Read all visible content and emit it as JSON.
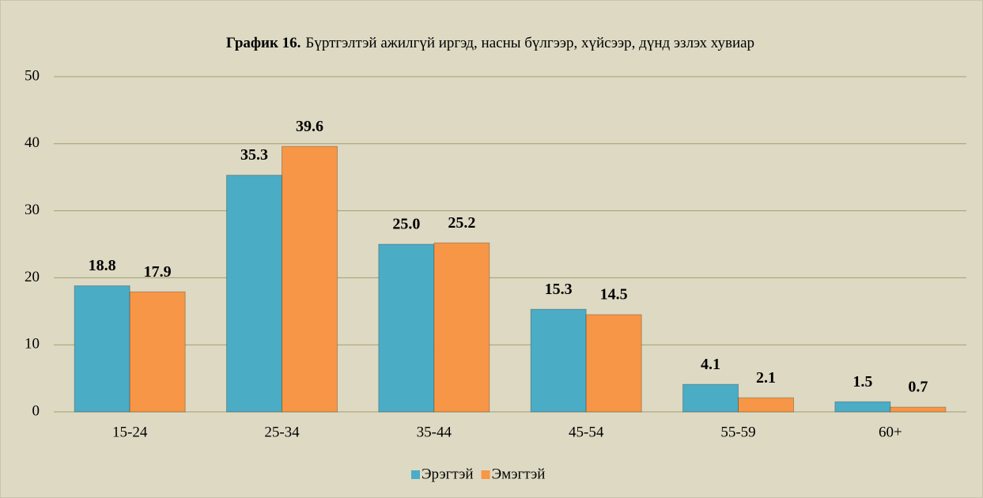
{
  "chart_data": {
    "type": "bar",
    "title_number": "График 16.",
    "title": "Бүртгэлтэй ажилгүй иргэд, насны бүлгээр, хүйсээр, дүнд эзлэх хувиар",
    "categories": [
      "15-24",
      "25-34",
      "35-44",
      "45-54",
      "55-59",
      "60+"
    ],
    "series": [
      {
        "name": "Эрэгтэй",
        "color": "#4bacc6",
        "values": [
          18.8,
          35.3,
          25.0,
          15.3,
          4.1,
          1.5
        ],
        "value_labels": [
          "18.8",
          "35.3",
          "25.0",
          "15.3",
          "4.1",
          "1.5"
        ]
      },
      {
        "name": "Эмэгтэй",
        "color": "#f79646",
        "values": [
          17.9,
          39.6,
          25.2,
          14.5,
          2.1,
          0.7
        ],
        "value_labels": [
          "17.9",
          "39.6",
          "25.2",
          "14.5",
          "2.1",
          "0.7"
        ]
      }
    ],
    "ylim": [
      0,
      50
    ],
    "yticks": [
      0,
      10,
      20,
      30,
      40,
      50
    ],
    "grid": true,
    "legend": "bottom"
  }
}
